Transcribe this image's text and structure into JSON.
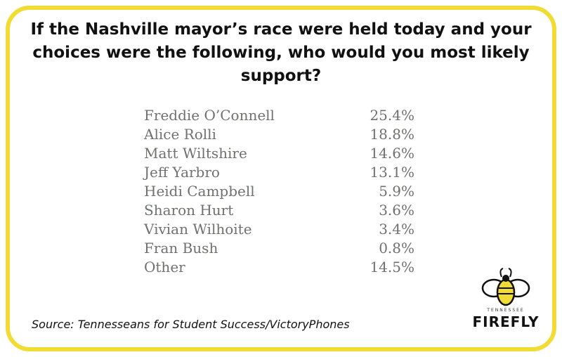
{
  "header": {
    "title": "If the Nashville mayor’s race were held today and your choices were the following, who would you most likely support?"
  },
  "table": {
    "rows": [
      [
        "Freddie O’Connell",
        "25.4%"
      ],
      [
        "Alice Rolli",
        "18.8%"
      ],
      [
        "Matt Wiltshire",
        "14.6%"
      ],
      [
        "Jeff Yarbro",
        "13.1%"
      ],
      [
        "Heidi Campbell",
        "5.9%"
      ],
      [
        "Sharon Hurt",
        "3.6%"
      ],
      [
        "Vivian Wilhoite",
        "3.4%"
      ],
      [
        "Fran Bush",
        "0.8%"
      ],
      [
        "Other",
        "14.5%"
      ]
    ]
  },
  "footer": {
    "source": "Source: Tennesseans for Student Success/VictoryPhones"
  },
  "logo": {
    "state": "TENNESSEE",
    "name": "FIREFLY"
  }
}
